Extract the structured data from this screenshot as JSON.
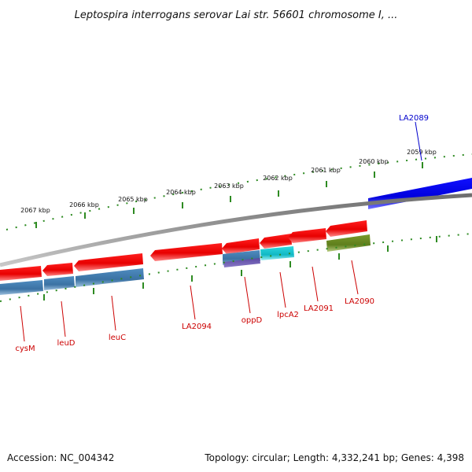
{
  "title": "Leptospira interrogans serovar Lai str. 56601 chromosome I, ...",
  "footer": {
    "accession": "Accession: NC_004342",
    "topology": "Topology: circular; Length: 4,332,241 bp; Genes: 4,398"
  },
  "ruler_labels": [
    "2059 kbp",
    "2060 kbp",
    "2061 kbp",
    "2062 kbp",
    "2063 kbp",
    "2064 kbp",
    "2065 kbp",
    "2066 kbp",
    "2067 kbp"
  ],
  "gene_labels": {
    "la2089": "LA2089",
    "cysm": "cysM",
    "leud": "leuD",
    "leuc": "leuC",
    "la2094": "LA2094",
    "oppd": "oppD",
    "lpca2": "lpcA2",
    "la2091": "LA2091",
    "la2090": "LA2090"
  },
  "colors": {
    "gene_red": "#ff0000",
    "label_red": "#cc0000",
    "gene_blue": "#0000ee",
    "label_blue": "#0000cc",
    "steel_blue": "#4682b4",
    "cyan": "#20c8d0",
    "olive": "#6b8e23",
    "purple": "#4b3a8c",
    "backbone": "#808080",
    "ticks": "#2e8b22"
  }
}
